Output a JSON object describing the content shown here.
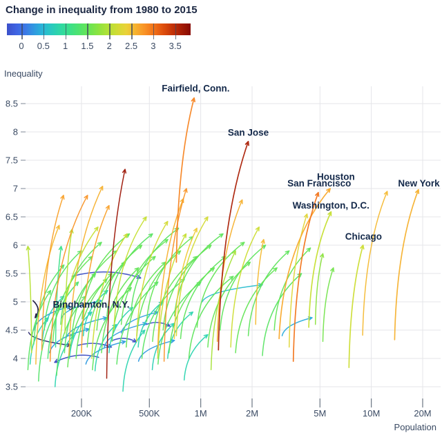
{
  "title": "Change in inequality from 1980 to 2015",
  "colorbar": {
    "tick_labels": [
      "0",
      "0.5",
      "1",
      "1.5",
      "2",
      "2.5",
      "3",
      "3.5"
    ],
    "tick_values": [
      0,
      0.5,
      1,
      1.5,
      2,
      2.5,
      3,
      3.5
    ],
    "domain": [
      -0.33,
      3.85
    ],
    "color_anchors": [
      [
        -0.75,
        "#16102c"
      ],
      [
        -0.55,
        "#2c2a6e"
      ],
      [
        -0.4,
        "#3a49c0"
      ],
      [
        -0.15,
        "#3f62e0"
      ],
      [
        0,
        "#4169e8"
      ],
      [
        0.45,
        "#27b4dc"
      ],
      [
        0.85,
        "#2bd8a8"
      ],
      [
        1.15,
        "#3fe183"
      ],
      [
        1.5,
        "#63e556"
      ],
      [
        1.8,
        "#95e33c"
      ],
      [
        2.1,
        "#c6df33"
      ],
      [
        2.4,
        "#ecd139"
      ],
      [
        2.65,
        "#f9a92c"
      ],
      [
        2.85,
        "#f98b24"
      ],
      [
        3.05,
        "#ef6d17"
      ],
      [
        3.25,
        "#dd4a0c"
      ],
      [
        3.5,
        "#bb2b07"
      ],
      [
        3.75,
        "#941004"
      ],
      [
        3.95,
        "#7a0403"
      ]
    ]
  },
  "chart_data": {
    "type": "scatter",
    "subtype": "arrow-trails, one per metro area, tail=1980 head=2015, color = change in inequality",
    "title": "Change in inequality from 1980 to 2015",
    "xlabel": "Population",
    "ylabel": "Inequality",
    "x_scale": "log",
    "x_ticks": [
      {
        "v": 200,
        "label": "200K"
      },
      {
        "v": 500,
        "label": "500K"
      },
      {
        "v": 1000,
        "label": "1M"
      },
      {
        "v": 2000,
        "label": "2M"
      },
      {
        "v": 5000,
        "label": "5M"
      },
      {
        "v": 10000,
        "label": "10M"
      },
      {
        "v": 20000,
        "label": "20M"
      }
    ],
    "y_ticks": [
      3.5,
      4,
      4.5,
      5,
      5.5,
      6,
      6.5,
      7,
      7.5,
      8,
      8.5
    ],
    "ylim": [
      3.3,
      8.75
    ],
    "arrow_format": [
      "pop1980_thousands",
      "ineq1980",
      "pop2015_thousands",
      "ineq2015",
      "change"
    ],
    "labeled_cities": [
      {
        "name": "Fairfield, Conn.",
        "arrow": [
          720,
          5.7,
          915,
          8.6,
          2.9
        ],
        "label_at": [
          935,
          8.77
        ]
      },
      {
        "name": "San Jose",
        "arrow": [
          1270,
          4.15,
          1900,
          7.83,
          3.6
        ],
        "label_at": [
          1900,
          7.99
        ]
      },
      {
        "name": "Houston",
        "arrow": [
          2880,
          4.35,
          5740,
          7.0,
          2.65
        ],
        "label_at": [
          6200,
          7.21
        ]
      },
      {
        "name": "San Francisco",
        "arrow": [
          3490,
          3.95,
          4890,
          6.93,
          3.0
        ],
        "label_at": [
          4950,
          7.09
        ]
      },
      {
        "name": "New York",
        "arrow": [
          13700,
          4.33,
          18900,
          6.98,
          2.6
        ],
        "label_at": [
          19000,
          7.09
        ]
      },
      {
        "name": "Washington, D.C.",
        "arrow": [
          4300,
          4.55,
          5810,
          6.59,
          2.1
        ],
        "label_at": [
          5800,
          6.7
        ]
      },
      {
        "name": "Chicago",
        "arrow": [
          7400,
          3.84,
          8950,
          6.0,
          2.15
        ],
        "label_at": [
          9000,
          6.15
        ]
      },
      {
        "name": "Binghamton, N.Y.",
        "arrow": [
          104,
          5.02,
          107,
          4.72,
          -0.7
        ],
        "label_at": [
          228,
          4.95
        ]
      }
    ],
    "arrows": [
      [
        281,
        3.65,
        360,
        7.34,
        3.7
      ],
      [
        117,
        4.15,
        157,
        6.88,
        2.7
      ],
      [
        131,
        3.95,
        217,
        6.88,
        2.8
      ],
      [
        169,
        4.05,
        266,
        7.04,
        2.6
      ],
      [
        8900,
        4.41,
        12400,
        6.95,
        2.55
      ],
      [
        98,
        4.46,
        173,
        4.23,
        -0.55
      ],
      [
        102,
        4.1,
        97,
        5.98,
        2.0
      ],
      [
        141,
        4.2,
        152,
        5.98,
        1.1
      ],
      [
        160,
        4.45,
        176,
        6.28,
        2.0
      ],
      [
        2100,
        4.6,
        2340,
        6.1,
        2.55
      ],
      [
        3300,
        4.2,
        4200,
        6.55,
        2.3
      ],
      [
        610,
        3.95,
        825,
        7.0,
        2.8
      ],
      [
        560,
        4.1,
        790,
        6.82,
        2.6
      ],
      [
        700,
        4.35,
        950,
        6.3,
        2.45
      ],
      [
        4700,
        4.6,
        5200,
        5.85,
        1.75
      ],
      [
        5200,
        4.3,
        6000,
        5.6,
        1.6
      ],
      [
        108,
        3.9,
        148,
        6.35,
        2.55
      ],
      [
        200,
        4.1,
        290,
        6.7,
        2.7
      ],
      [
        1250,
        4.3,
        1750,
        6.8,
        2.6
      ],
      [
        150,
        4.2,
        250,
        6.32,
        2.1
      ],
      [
        230,
        4.0,
        370,
        6.2,
        2.15
      ],
      [
        310,
        4.5,
        480,
        6.5,
        2.1
      ],
      [
        420,
        4.3,
        640,
        6.42,
        2.2
      ],
      [
        560,
        4.0,
        820,
        6.2,
        2.1
      ],
      [
        720,
        4.4,
        1100,
        6.5,
        2.2
      ],
      [
        1500,
        4.2,
        2200,
        6.32,
        2.15
      ],
      [
        1150,
        3.8,
        1600,
        5.9,
        1.9
      ],
      [
        97,
        3.8,
        132,
        5.2,
        1.4
      ],
      [
        105,
        4.25,
        158,
        5.65,
        1.4
      ],
      [
        112,
        3.6,
        150,
        4.95,
        1.35
      ],
      [
        121,
        4.5,
        200,
        5.9,
        1.4
      ],
      [
        127,
        4.0,
        192,
        5.35,
        1.3
      ],
      [
        136,
        4.3,
        232,
        5.8,
        1.5
      ],
      [
        143,
        3.7,
        212,
        5.1,
        1.4
      ],
      [
        151,
        4.6,
        262,
        6.05,
        1.45
      ],
      [
        159,
        4.1,
        242,
        5.5,
        1.4
      ],
      [
        166,
        3.85,
        282,
        5.4,
        1.5
      ],
      [
        176,
        4.4,
        322,
        5.9,
        1.5
      ],
      [
        186,
        4.0,
        302,
        5.5,
        1.5
      ],
      [
        202,
        4.7,
        382,
        6.2,
        1.5
      ],
      [
        216,
        4.2,
        362,
        5.7,
        1.5
      ],
      [
        232,
        3.8,
        392,
        5.25,
        1.45
      ],
      [
        246,
        4.5,
        452,
        6.0,
        1.5
      ],
      [
        262,
        4.1,
        432,
        5.6,
        1.5
      ],
      [
        282,
        4.75,
        522,
        6.2,
        1.4
      ],
      [
        302,
        4.3,
        542,
        5.8,
        1.5
      ],
      [
        322,
        3.9,
        562,
        5.35,
        1.4
      ],
      [
        342,
        4.6,
        642,
        6.1,
        1.5
      ],
      [
        366,
        4.2,
        622,
        5.7,
        1.5
      ],
      [
        392,
        4.85,
        742,
        6.3,
        1.4
      ],
      [
        422,
        4.4,
        762,
        5.9,
        1.5
      ],
      [
        452,
        4.0,
        802,
        5.4,
        1.4
      ],
      [
        482,
        4.65,
        902,
        6.15,
        1.5
      ],
      [
        522,
        4.3,
        952,
        5.8,
        1.5
      ],
      [
        562,
        3.9,
        1002,
        5.35,
        1.4
      ],
      [
        602,
        4.5,
        1152,
        6.0,
        1.5
      ],
      [
        652,
        4.1,
        1202,
        5.6,
        1.5
      ],
      [
        702,
        4.75,
        1352,
        6.2,
        1.45
      ],
      [
        762,
        4.35,
        1402,
        5.8,
        1.45
      ],
      [
        852,
        4.0,
        1552,
        5.45,
        1.45
      ],
      [
        952,
        4.55,
        1802,
        6.05,
        1.5
      ],
      [
        1100,
        4.2,
        1950,
        5.7,
        1.5
      ],
      [
        1300,
        4.5,
        2400,
        6.0,
        1.45
      ],
      [
        1600,
        4.1,
        2800,
        5.6,
        1.5
      ],
      [
        1900,
        4.4,
        3300,
        5.9,
        1.45
      ],
      [
        2300,
        4.05,
        3900,
        5.5,
        1.4
      ],
      [
        2700,
        4.5,
        4400,
        5.95,
        1.5
      ],
      [
        100,
        3.9,
        128,
        4.72,
        0.8
      ],
      [
        118,
        4.3,
        158,
        5.1,
        0.75
      ],
      [
        140,
        3.5,
        180,
        4.42,
        0.8
      ],
      [
        170,
        4.0,
        230,
        4.82,
        0.75
      ],
      [
        205,
        4.4,
        285,
        5.2,
        0.8
      ],
      [
        240,
        3.78,
        320,
        4.6,
        0.8
      ],
      [
        290,
        4.1,
        400,
        4.9,
        0.75
      ],
      [
        350,
        3.42,
        470,
        4.5,
        0.8
      ],
      [
        430,
        4.2,
        600,
        5.0,
        0.8
      ],
      [
        520,
        3.8,
        700,
        4.62,
        0.75
      ],
      [
        640,
        4.0,
        900,
        4.82,
        0.8
      ],
      [
        1020,
        5.0,
        2300,
        5.3,
        0.55
      ],
      [
        800,
        3.62,
        1100,
        4.42,
        0.8
      ],
      [
        105,
        4.5,
        172,
        4.92,
        0.3
      ],
      [
        130,
        4.1,
        222,
        4.52,
        0.3
      ],
      [
        162,
        4.35,
        282,
        4.72,
        0.35
      ],
      [
        212,
        3.9,
        362,
        4.3,
        0.3
      ],
      [
        272,
        4.2,
        482,
        4.62,
        0.3
      ],
      [
        342,
        4.45,
        562,
        4.82,
        0.32
      ],
      [
        152,
        4.7,
        262,
        5.02,
        0.4
      ],
      [
        432,
        3.95,
        702,
        4.32,
        0.3
      ],
      [
        3000,
        4.4,
        4500,
        4.72,
        0.4
      ],
      [
        176,
        5.45,
        445,
        5.42,
        -0.38
      ],
      [
        252,
        4.02,
        139,
        3.93,
        -0.4
      ],
      [
        190,
        4.23,
        300,
        4.2,
        -0.38
      ],
      [
        305,
        4.32,
        420,
        4.29,
        -0.36
      ],
      [
        480,
        4.6,
        660,
        4.57,
        -0.35
      ]
    ]
  }
}
